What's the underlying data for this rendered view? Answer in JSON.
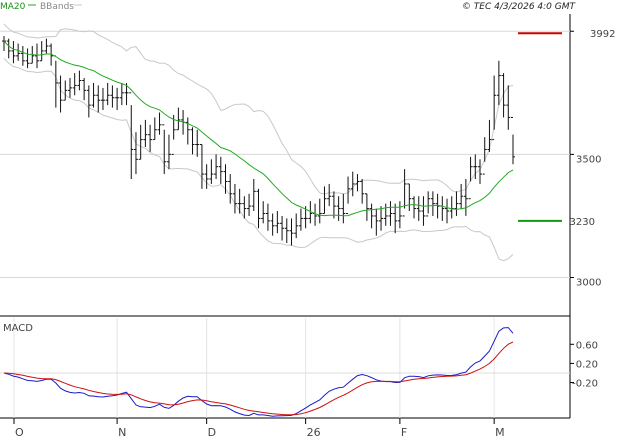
{
  "header": {
    "legend_ma": "MA20",
    "legend_bbands": "BBands",
    "timestamp": "© TEC 4/3/2026 4:0 GMT"
  },
  "colors": {
    "price": "#111111",
    "ma": "#22aa22",
    "bbands": "#c8c8c8",
    "resistance": "#cc0000",
    "support": "#119911",
    "macd": "#1a1acc",
    "signal": "#cc1111",
    "grid": "#d8d8d8"
  },
  "chart_data": [
    {
      "type": "ohlc",
      "panel": "price",
      "ylim": [
        2860,
        4070
      ],
      "y_ticks": [
        3000,
        3500
      ],
      "y_tick_labels": [
        "3000",
        "3500"
      ],
      "x_tick_labels": [
        "O",
        "N",
        "D",
        "26",
        "F",
        "M"
      ],
      "levels": [
        {
          "name": "resistance",
          "label": "3992",
          "value": 3992
        },
        {
          "name": "support",
          "label": "3230",
          "value": 3230
        }
      ],
      "close": [
        3960,
        3920,
        3900,
        3910,
        3880,
        3870,
        3900,
        3880,
        3920,
        3940,
        3900,
        3790,
        3720,
        3760,
        3770,
        3780,
        3800,
        3760,
        3700,
        3740,
        3720,
        3720,
        3740,
        3730,
        3730,
        3750,
        3750,
        3520,
        3480,
        3560,
        3580,
        3560,
        3600,
        3620,
        3470,
        3500,
        3600,
        3640,
        3630,
        3600,
        3540,
        3540,
        3420,
        3400,
        3420,
        3450,
        3430,
        3390,
        3340,
        3300,
        3300,
        3280,
        3290,
        3350,
        3240,
        3260,
        3230,
        3210,
        3220,
        3200,
        3190,
        3180,
        3210,
        3240,
        3240,
        3260,
        3250,
        3260,
        3320,
        3330,
        3290,
        3280,
        3260,
        3360,
        3380,
        3390,
        3340,
        3280,
        3250,
        3230,
        3240,
        3250,
        3260,
        3230,
        3250,
        3380,
        3320,
        3280,
        3270,
        3250,
        3320,
        3300,
        3290,
        3280,
        3270,
        3280,
        3300,
        3330,
        3320,
        3450,
        3450,
        3420,
        3520,
        3560,
        3740,
        3820,
        3700,
        3650,
        3490
      ],
      "high": [
        3980,
        3970,
        3960,
        3950,
        3940,
        3930,
        3940,
        3950,
        3960,
        3970,
        3950,
        3880,
        3820,
        3800,
        3810,
        3830,
        3840,
        3810,
        3780,
        3790,
        3780,
        3770,
        3790,
        3780,
        3770,
        3790,
        3790,
        3700,
        3590,
        3620,
        3640,
        3620,
        3650,
        3670,
        3600,
        3580,
        3660,
        3690,
        3680,
        3650,
        3610,
        3600,
        3540,
        3460,
        3480,
        3500,
        3490,
        3460,
        3420,
        3380,
        3360,
        3330,
        3340,
        3400,
        3360,
        3310,
        3300,
        3260,
        3270,
        3250,
        3240,
        3240,
        3260,
        3280,
        3290,
        3310,
        3300,
        3320,
        3370,
        3380,
        3350,
        3330,
        3340,
        3410,
        3430,
        3420,
        3400,
        3340,
        3300,
        3280,
        3290,
        3300,
        3310,
        3300,
        3310,
        3440,
        3380,
        3330,
        3330,
        3330,
        3350,
        3350,
        3340,
        3330,
        3320,
        3330,
        3350,
        3380,
        3400,
        3490,
        3500,
        3480,
        3570,
        3640,
        3820,
        3880,
        3830,
        3780,
        3580
      ],
      "low": [
        3920,
        3890,
        3870,
        3880,
        3860,
        3850,
        3870,
        3850,
        3880,
        3910,
        3860,
        3690,
        3670,
        3720,
        3730,
        3740,
        3760,
        3720,
        3650,
        3690,
        3670,
        3680,
        3700,
        3690,
        3680,
        3700,
        3700,
        3400,
        3420,
        3480,
        3530,
        3510,
        3560,
        3580,
        3420,
        3440,
        3560,
        3600,
        3580,
        3540,
        3500,
        3490,
        3360,
        3360,
        3380,
        3400,
        3380,
        3340,
        3300,
        3260,
        3260,
        3240,
        3250,
        3270,
        3200,
        3220,
        3190,
        3170,
        3180,
        3150,
        3140,
        3130,
        3160,
        3190,
        3200,
        3220,
        3210,
        3220,
        3260,
        3290,
        3240,
        3230,
        3220,
        3300,
        3330,
        3350,
        3300,
        3230,
        3200,
        3170,
        3190,
        3210,
        3210,
        3180,
        3200,
        3280,
        3270,
        3240,
        3230,
        3210,
        3260,
        3250,
        3240,
        3230,
        3220,
        3240,
        3250,
        3280,
        3250,
        3390,
        3400,
        3380,
        3470,
        3510,
        3600,
        3700,
        3650,
        3600,
        3460
      ]
    },
    {
      "type": "line",
      "panel": "macd",
      "series_labels": [
        "MACD"
      ],
      "ylim": [
        -0.9,
        1.15
      ],
      "y_ticks": [
        0.6,
        0.2,
        -0.2
      ],
      "y_tick_labels": [
        "0.60",
        "0.20",
        "-0.20"
      ]
    }
  ]
}
